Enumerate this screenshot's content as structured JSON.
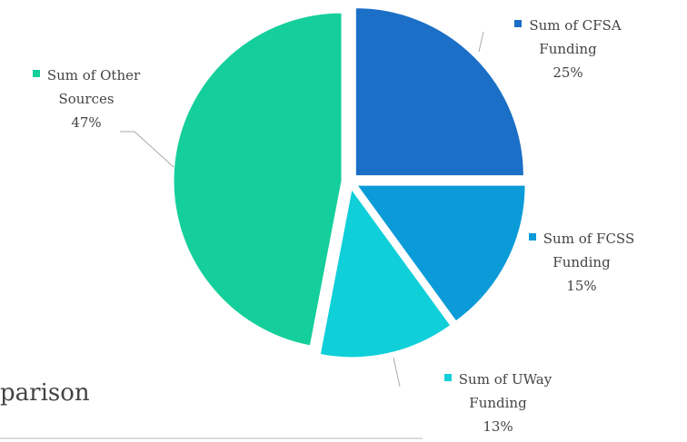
{
  "chart_data": {
    "type": "pie",
    "categories": [
      "Sum of CFSA Funding",
      "Sum of FCSS Funding",
      "Sum of UWay Funding",
      "Sum of Other Sources"
    ],
    "values": [
      25,
      15,
      13,
      47
    ],
    "value_labels": [
      "25%",
      "15%",
      "13%",
      "47%"
    ],
    "colors": [
      "#1b6fc7",
      "#0b9bd8",
      "#0fcfd9",
      "#14cf9b"
    ]
  },
  "caption": "parison"
}
